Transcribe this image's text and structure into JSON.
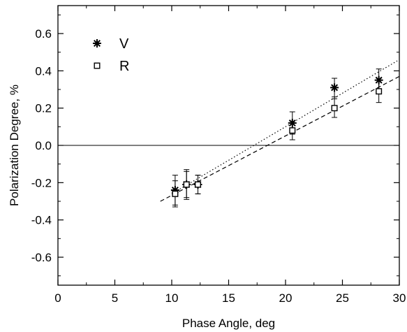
{
  "chart_data": {
    "type": "scatter",
    "xlabel": "Phase Angle, deg",
    "ylabel": "Polarization Degree, %",
    "xlim": [
      0,
      30
    ],
    "ylim": [
      -0.75,
      0.75
    ],
    "xticks": [
      0,
      5,
      10,
      15,
      20,
      25,
      30
    ],
    "xtick_labels": [
      "0",
      "5",
      "10",
      "15",
      "20",
      "25",
      "30"
    ],
    "yticks": [
      -0.6,
      -0.4,
      -0.2,
      0.0,
      0.2,
      0.4,
      0.6
    ],
    "ytick_labels": [
      "-0.6",
      "-0.4",
      "-0.2",
      "0.0",
      "0.2",
      "0.4",
      "0.6"
    ],
    "grid": false,
    "legend_position": "top-left",
    "zero_line": true,
    "series": [
      {
        "name": "V",
        "marker": "asterisk",
        "x": [
          10.3,
          11.3,
          12.3,
          20.6,
          24.3,
          28.2
        ],
        "y": [
          -0.24,
          -0.21,
          -0.21,
          0.12,
          0.31,
          0.35
        ],
        "yerr": [
          0.08,
          0.08,
          0.05,
          0.06,
          0.05,
          0.06
        ],
        "fit": {
          "style": "dotted",
          "x": [
            10.0,
            30.0
          ],
          "y": [
            -0.26,
            0.46
          ]
        }
      },
      {
        "name": "R",
        "marker": "open-square",
        "x": [
          10.3,
          11.3,
          12.3,
          20.6,
          24.3,
          28.2
        ],
        "y": [
          -0.26,
          -0.21,
          -0.21,
          0.08,
          0.2,
          0.29
        ],
        "yerr": [
          0.07,
          0.07,
          0.05,
          0.05,
          0.05,
          0.06
        ],
        "fit": {
          "style": "dashed",
          "x": [
            9.0,
            30.0
          ],
          "y": [
            -0.3,
            0.37
          ]
        }
      }
    ]
  }
}
